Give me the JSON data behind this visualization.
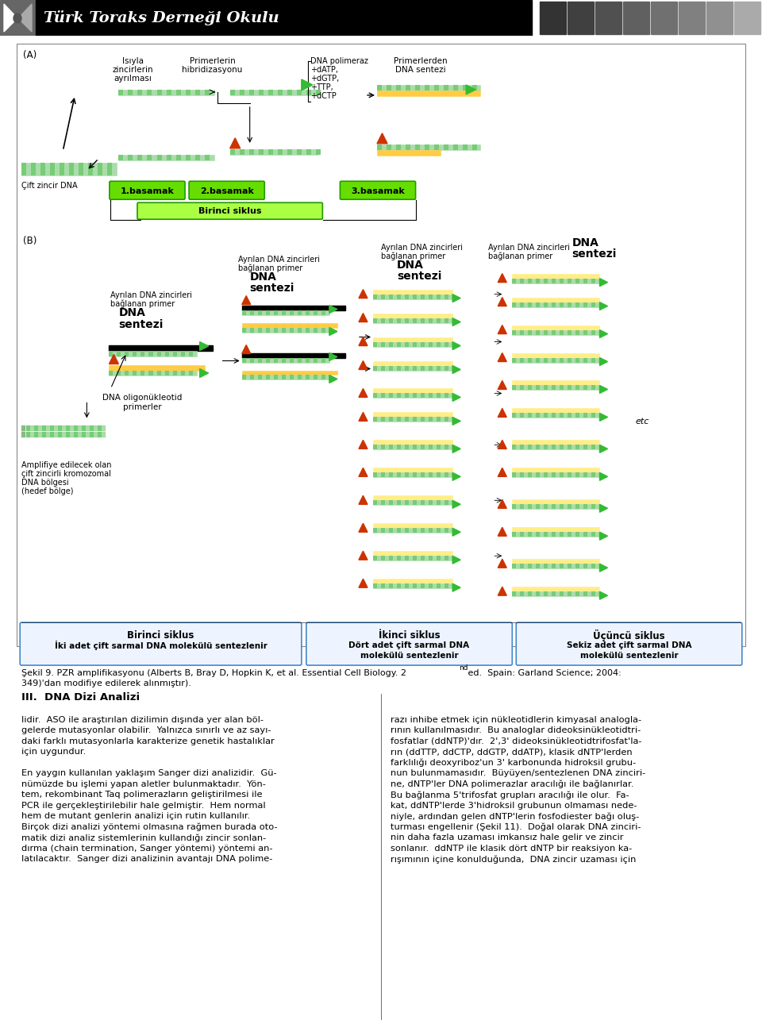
{
  "header_text": "Türk Toraks Derneği Okulu",
  "header_bg": "#000000",
  "header_text_color": "#ffffff",
  "page_bg": "#ffffff",
  "section_heading": "III.  DNA Dizi Analizi",
  "col1_lines": [
    "lidir.  ASO ile araştırılan dizilimin dışında yer alan böl-",
    "gelerde mutasyonlar olabilir.  Yalnızca sınırlı ve az sayı-",
    "daki farklı mutasyonlarla karakterize genetik hastalıklar",
    "için uygundur.",
    "",
    "En yaygın kullanılan yaklaşım Sanger dizi analizidir.  Gü-",
    "nümüzde bu işlemi yapan aletler bulunmaktadır.  Yön-",
    "tem, rekombinant Taq polimerazların geliştirilmesi ile",
    "PCR ile gerçekleştirilebilir hale gelmiştir.  Hem normal",
    "hem de mutant genlerin analizi için rutin kullanılır.",
    "Birçok dizi analizi yöntemi olmasına rağmen burada oto-",
    "matik dizi analiz sistemlerinin kullandığı zincir sonlan-",
    "dırma (chain termination, Sanger yöntemi) yöntemi an-",
    "latılacaktır.  Sanger dizi analizinin avantajı DNA polime-"
  ],
  "col2_lines": [
    "razı inhibe etmek için nükleotidlerin kimyasal analogla-",
    "rının kullanılmasıdır.  Bu analoglar dideoksinükleotidtri-",
    "fosfatlar (ddNTP)'dır.  2',3' dideoksinükleotidtrifosfat'la-",
    "rın (ddTTP, ddCTP, ddGTP, ddATP), klasik dNTP'lerden",
    "farklılığı deoxyriboz'un 3' karbonunda hidroksil grubu-",
    "nun bulunmamasıdır.  Büyüyen/sentezlenen DNA zinciri-",
    "ne, dNTP'ler DNA polimerazlar aracılığı ile bağlanırlar.",
    "Bu bağlanma 5'trifosfat grupları aracılığı ile olur.  Fa-",
    "kat, ddNTP'lerde 3'hidroksil grubunun olmaması nede-",
    "niyle, ardından gelen dNTP'lerin fosfodiester bağı oluş-",
    "turması engellenir (Şekil 11).  Doğal olarak DNA zinciri-",
    "nin daha fazla uzaması imkansız hale gelir ve zincir",
    "sonlanır.  ddNTP ile klasik dört dNTP bir reaksiyon ka-",
    "rışımının içine konulduğunda,  DNA zincir uzaması için"
  ],
  "caption_line1": "Şekil 9. PZR amplifikasyonu (Alberts B, Bray D, Hopkin K, et al. Essential Cell Biology. 2",
  "caption_line1b": "nd",
  "caption_line1c": " ed.  Spain: Garland Science; 2004:",
  "caption_line2": "349)'dan modifiye edilerek alınmıştır).",
  "gray_sq_colors": [
    "#333333",
    "#404040",
    "#505050",
    "#606060",
    "#707070",
    "#808080",
    "#909090",
    "#aaaaaa"
  ]
}
